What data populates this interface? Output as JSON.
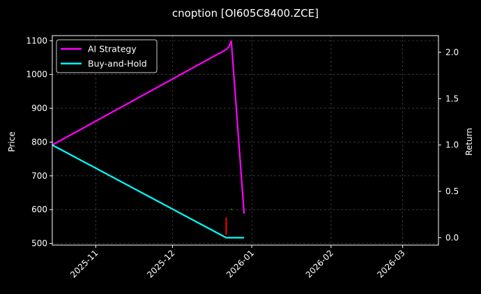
{
  "chart_data": {
    "type": "line",
    "title": "cnoption [OI605C8400.ZCE]",
    "xlabel": "",
    "ylabel": "Price",
    "y2label": "Return",
    "x_ticks": [
      "2025-11",
      "2025-12",
      "2026-01",
      "2026-02",
      "2026-03"
    ],
    "xlim": [
      "2025-10-15",
      "2026-03-15"
    ],
    "ylim": [
      495,
      1115
    ],
    "y_ticks": [
      500,
      600,
      700,
      800,
      900,
      1000,
      1100
    ],
    "y2lim": [
      -0.08,
      2.18
    ],
    "y2_ticks": [
      "0.0",
      "0.5",
      "1.0",
      "1.5",
      "2.0"
    ],
    "grid": true,
    "legend_position": "top-left",
    "series": [
      {
        "name": "AI Strategy",
        "axis": "right",
        "color": "#ff00ff",
        "points": [
          {
            "x": "2025-10-15",
            "y": 1.0
          },
          {
            "x": "2025-12-22",
            "y": 2.03
          },
          {
            "x": "2025-12-23",
            "y": 2.06
          },
          {
            "x": "2025-12-24",
            "y": 2.12
          },
          {
            "x": "2025-12-29",
            "y": 0.26
          }
        ]
      },
      {
        "name": "Buy-and-Hold",
        "axis": "right",
        "color": "#00ffff",
        "points": [
          {
            "x": "2025-10-15",
            "y": 1.0
          },
          {
            "x": "2025-12-22",
            "y": 0.0
          },
          {
            "x": "2025-12-29",
            "y": 0.0
          }
        ]
      }
    ],
    "price_marks": [
      {
        "x": "2025-12-22",
        "low": 525,
        "high": 577,
        "color": "#ff0000"
      },
      {
        "x": "2025-12-24",
        "low": 600,
        "high": 602,
        "color": "#00ff00"
      }
    ],
    "colors": {
      "background": "#000000",
      "axes": "#ffffff",
      "grid": "#555555"
    }
  }
}
